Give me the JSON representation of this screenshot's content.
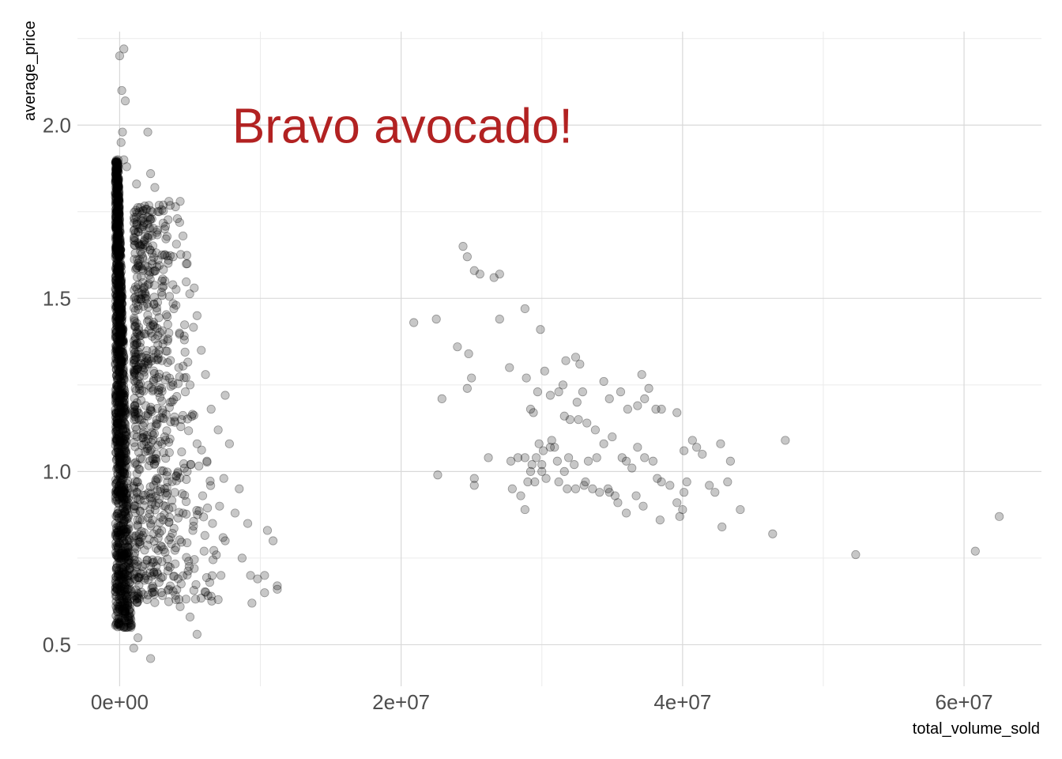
{
  "chart_data": {
    "type": "scatter",
    "title": "",
    "xlabel": "total_volume_sold",
    "ylabel": "average_price",
    "xlim": [
      -3000000,
      65500000
    ],
    "ylim": [
      0.38,
      2.27
    ],
    "x_ticks": [
      {
        "value": 0,
        "label": "0e+00"
      },
      {
        "value": 20000000,
        "label": "2e+07"
      },
      {
        "value": 40000000,
        "label": "4e+07"
      },
      {
        "value": 60000000,
        "label": "6e+07"
      }
    ],
    "y_ticks": [
      {
        "value": 0.5,
        "label": "0.5"
      },
      {
        "value": 1.0,
        "label": "1.0"
      },
      {
        "value": 1.5,
        "label": "1.5"
      },
      {
        "value": 2.0,
        "label": "2.0"
      }
    ],
    "grid": true,
    "point_color": "#000000",
    "point_opacity": 0.22,
    "annotation": {
      "text": "Bravo avocado!",
      "x": 8000000,
      "y": 2.0,
      "color": "#B22222"
    },
    "points": [
      [
        0,
        2.2
      ],
      [
        300000,
        2.22
      ],
      [
        150000,
        2.1
      ],
      [
        400000,
        2.07
      ],
      [
        200000,
        1.98
      ],
      [
        2000000,
        1.98
      ],
      [
        100000,
        1.95
      ],
      [
        300000,
        1.9
      ],
      [
        500000,
        1.88
      ],
      [
        2200000,
        1.86
      ],
      [
        1200000,
        1.83
      ],
      [
        2500000,
        1.82
      ],
      [
        3500000,
        1.78
      ],
      [
        4300000,
        1.78
      ],
      [
        1400000,
        1.75
      ],
      [
        2800000,
        1.75
      ],
      [
        4100000,
        1.73
      ],
      [
        3200000,
        1.7
      ],
      [
        4500000,
        1.68
      ],
      [
        2000000,
        1.65
      ],
      [
        3800000,
        1.62
      ],
      [
        4800000,
        1.6
      ],
      [
        2500000,
        1.58
      ],
      [
        3000000,
        1.55
      ],
      [
        5300000,
        1.53
      ],
      [
        1800000,
        1.5
      ],
      [
        4000000,
        1.48
      ],
      [
        5500000,
        1.45
      ],
      [
        2200000,
        1.42
      ],
      [
        3500000,
        1.4
      ],
      [
        4600000,
        1.38
      ],
      [
        5800000,
        1.35
      ],
      [
        1600000,
        1.33
      ],
      [
        3000000,
        1.32
      ],
      [
        4200000,
        1.3
      ],
      [
        6100000,
        1.28
      ],
      [
        2400000,
        1.26
      ],
      [
        5000000,
        1.25
      ],
      [
        7500000,
        1.22
      ],
      [
        3600000,
        1.2
      ],
      [
        6500000,
        1.18
      ],
      [
        2000000,
        1.16
      ],
      [
        4400000,
        1.15
      ],
      [
        7000000,
        1.12
      ],
      [
        3200000,
        1.1
      ],
      [
        5500000,
        1.08
      ],
      [
        7800000,
        1.08
      ],
      [
        2600000,
        1.05
      ],
      [
        6200000,
        1.03
      ],
      [
        4800000,
        1.0
      ],
      [
        7400000,
        0.98
      ],
      [
        3400000,
        0.97
      ],
      [
        8500000,
        0.95
      ],
      [
        5900000,
        0.93
      ],
      [
        2800000,
        0.92
      ],
      [
        7100000,
        0.9
      ],
      [
        4500000,
        0.88
      ],
      [
        8200000,
        0.88
      ],
      [
        3100000,
        0.86
      ],
      [
        6600000,
        0.85
      ],
      [
        9100000,
        0.85
      ],
      [
        5200000,
        0.83
      ],
      [
        10500000,
        0.83
      ],
      [
        2400000,
        0.82
      ],
      [
        7500000,
        0.8
      ],
      [
        10900000,
        0.8
      ],
      [
        4000000,
        0.78
      ],
      [
        6000000,
        0.77
      ],
      [
        8700000,
        0.75
      ],
      [
        3000000,
        0.74
      ],
      [
        5300000,
        0.72
      ],
      [
        7200000,
        0.7
      ],
      [
        9300000,
        0.7
      ],
      [
        10300000,
        0.7
      ],
      [
        2800000,
        0.68
      ],
      [
        6400000,
        0.68
      ],
      [
        9800000,
        0.69
      ],
      [
        11200000,
        0.67
      ],
      [
        3500000,
        0.66
      ],
      [
        11200000,
        0.66
      ],
      [
        10300000,
        0.65
      ],
      [
        6500000,
        0.64
      ],
      [
        4000000,
        0.63
      ],
      [
        7000000,
        0.63
      ],
      [
        4300000,
        0.61
      ],
      [
        9400000,
        0.62
      ],
      [
        5000000,
        0.58
      ],
      [
        5500000,
        0.53
      ],
      [
        1000000,
        0.49
      ],
      [
        2200000,
        0.46
      ],
      [
        1300000,
        0.52
      ],
      [
        500000,
        0.55
      ],
      [
        20900000,
        1.43
      ],
      [
        22500000,
        1.44
      ],
      [
        24400000,
        1.65
      ],
      [
        24700000,
        1.62
      ],
      [
        25200000,
        1.58
      ],
      [
        25600000,
        1.57
      ],
      [
        26600000,
        1.56
      ],
      [
        27000000,
        1.57
      ],
      [
        24000000,
        1.36
      ],
      [
        24800000,
        1.34
      ],
      [
        25000000,
        1.27
      ],
      [
        24700000,
        1.24
      ],
      [
        22900000,
        1.21
      ],
      [
        22600000,
        0.99
      ],
      [
        25200000,
        0.98
      ],
      [
        25200000,
        0.96
      ],
      [
        27000000,
        1.44
      ],
      [
        28800000,
        1.47
      ],
      [
        29900000,
        1.41
      ],
      [
        27700000,
        1.3
      ],
      [
        28900000,
        1.27
      ],
      [
        30200000,
        1.29
      ],
      [
        29200000,
        1.18
      ],
      [
        29400000,
        1.17
      ],
      [
        29700000,
        1.23
      ],
      [
        30600000,
        1.22
      ],
      [
        31200000,
        1.23
      ],
      [
        31500000,
        1.25
      ],
      [
        31700000,
        1.32
      ],
      [
        32400000,
        1.33
      ],
      [
        32700000,
        1.31
      ],
      [
        32500000,
        1.2
      ],
      [
        32900000,
        1.23
      ],
      [
        31600000,
        1.16
      ],
      [
        32000000,
        1.15
      ],
      [
        32600000,
        1.15
      ],
      [
        33200000,
        1.14
      ],
      [
        33800000,
        1.12
      ],
      [
        34400000,
        1.26
      ],
      [
        34800000,
        1.21
      ],
      [
        35600000,
        1.23
      ],
      [
        36100000,
        1.18
      ],
      [
        36800000,
        1.19
      ],
      [
        37100000,
        1.28
      ],
      [
        37300000,
        1.21
      ],
      [
        37600000,
        1.24
      ],
      [
        38100000,
        1.18
      ],
      [
        38500000,
        1.18
      ],
      [
        39600000,
        1.17
      ],
      [
        26200000,
        1.04
      ],
      [
        27800000,
        1.03
      ],
      [
        28300000,
        1.04
      ],
      [
        28800000,
        1.04
      ],
      [
        29300000,
        1.02
      ],
      [
        29800000,
        1.08
      ],
      [
        30100000,
        1.06
      ],
      [
        30600000,
        1.07
      ],
      [
        30900000,
        1.07
      ],
      [
        29600000,
        1.04
      ],
      [
        30000000,
        1.0
      ],
      [
        30300000,
        0.98
      ],
      [
        29500000,
        0.97
      ],
      [
        29000000,
        0.97
      ],
      [
        28500000,
        0.93
      ],
      [
        27900000,
        0.95
      ],
      [
        28800000,
        0.89
      ],
      [
        31200000,
        0.97
      ],
      [
        31800000,
        0.95
      ],
      [
        32400000,
        0.95
      ],
      [
        33000000,
        0.96
      ],
      [
        33600000,
        0.95
      ],
      [
        34100000,
        0.94
      ],
      [
        34700000,
        0.95
      ],
      [
        35200000,
        0.93
      ],
      [
        33300000,
        1.03
      ],
      [
        33900000,
        1.04
      ],
      [
        34400000,
        1.08
      ],
      [
        35000000,
        1.1
      ],
      [
        35700000,
        1.04
      ],
      [
        36000000,
        1.03
      ],
      [
        36400000,
        1.01
      ],
      [
        36800000,
        1.07
      ],
      [
        37300000,
        1.04
      ],
      [
        37900000,
        1.03
      ],
      [
        38200000,
        0.98
      ],
      [
        38500000,
        0.97
      ],
      [
        39100000,
        0.96
      ],
      [
        39600000,
        0.91
      ],
      [
        40000000,
        0.89
      ],
      [
        40300000,
        0.97
      ],
      [
        40700000,
        1.09
      ],
      [
        40100000,
        1.06
      ],
      [
        41000000,
        1.07
      ],
      [
        41400000,
        1.05
      ],
      [
        41900000,
        0.96
      ],
      [
        42300000,
        0.94
      ],
      [
        42800000,
        0.84
      ],
      [
        43200000,
        0.97
      ],
      [
        43400000,
        1.03
      ],
      [
        42700000,
        1.08
      ],
      [
        44100000,
        0.89
      ],
      [
        46400000,
        0.82
      ],
      [
        47300000,
        1.09
      ],
      [
        52300000,
        0.76
      ],
      [
        60800000,
        0.77
      ],
      [
        62500000,
        0.87
      ],
      [
        39800000,
        0.87
      ],
      [
        40100000,
        0.94
      ],
      [
        38400000,
        0.86
      ],
      [
        37200000,
        0.9
      ],
      [
        36700000,
        0.93
      ],
      [
        36000000,
        0.88
      ],
      [
        35400000,
        0.91
      ],
      [
        34800000,
        0.94
      ],
      [
        33100000,
        0.97
      ],
      [
        32300000,
        1.02
      ],
      [
        31900000,
        1.04
      ],
      [
        31600000,
        1.0
      ],
      [
        31100000,
        1.03
      ],
      [
        30700000,
        1.09
      ],
      [
        30000000,
        1.02
      ],
      [
        29200000,
        1.0
      ]
    ]
  }
}
